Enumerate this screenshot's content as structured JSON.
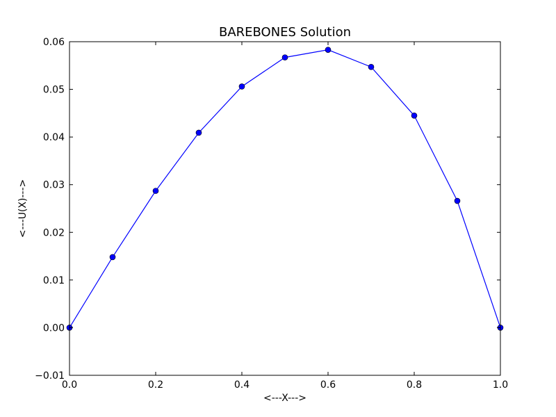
{
  "chart_data": {
    "type": "line",
    "title": "BAREBONES Solution",
    "xlabel": "<---X--->",
    "ylabel": "<---U(X)--->",
    "xlim": [
      0.0,
      1.0
    ],
    "ylim": [
      -0.01,
      0.06
    ],
    "grid": false,
    "x_ticks": [
      0.0,
      0.2,
      0.4,
      0.6,
      0.8,
      1.0
    ],
    "x_tick_labels": [
      "0.0",
      "0.2",
      "0.4",
      "0.6",
      "0.8",
      "1.0"
    ],
    "y_ticks": [
      -0.01,
      0.0,
      0.01,
      0.02,
      0.03,
      0.04,
      0.05,
      0.06
    ],
    "y_tick_labels": [
      "−0.01",
      "0.00",
      "0.01",
      "0.02",
      "0.03",
      "0.04",
      "0.05",
      "0.06"
    ],
    "series": [
      {
        "color": "#0000ff",
        "marker": "circle",
        "x": [
          0.0,
          0.1,
          0.2,
          0.3,
          0.4,
          0.5,
          0.6,
          0.7,
          0.8,
          0.9,
          1.0
        ],
        "y": [
          0.0,
          0.0148,
          0.0287,
          0.0409,
          0.0506,
          0.0567,
          0.0583,
          0.0547,
          0.0445,
          0.0266,
          0.0
        ]
      }
    ]
  }
}
